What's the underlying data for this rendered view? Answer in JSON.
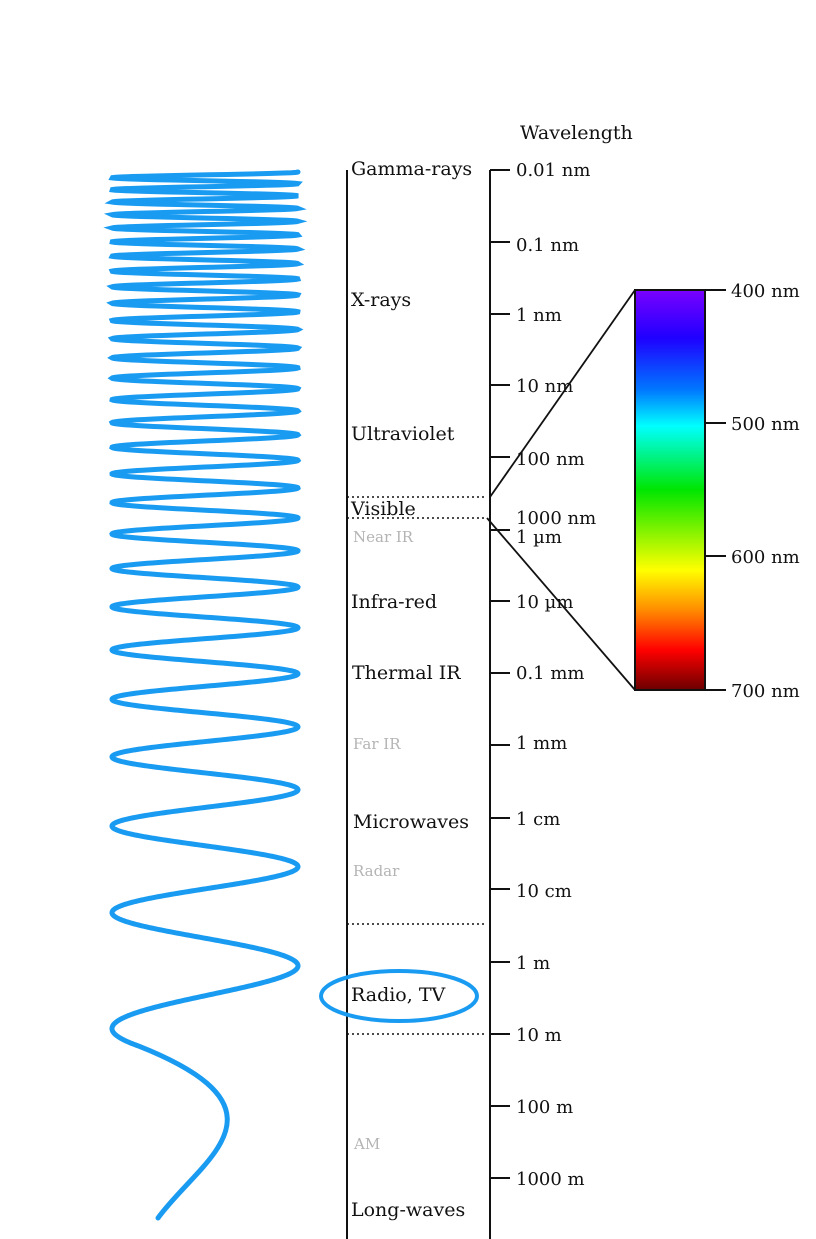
{
  "axis_title": "Wavelength",
  "bands": [
    {
      "label": "Gamma-rays",
      "kind": "main"
    },
    {
      "label": "X-rays",
      "kind": "main"
    },
    {
      "label": "Ultraviolet",
      "kind": "main"
    },
    {
      "label": "Visible",
      "kind": "main"
    },
    {
      "label": "Near IR",
      "kind": "sub"
    },
    {
      "label": "Infra-red",
      "kind": "main"
    },
    {
      "label": "Thermal IR",
      "kind": "main"
    },
    {
      "label": "Far IR",
      "kind": "sub"
    },
    {
      "label": "Microwaves",
      "kind": "main"
    },
    {
      "label": "Radar",
      "kind": "sub"
    },
    {
      "label": "Radio, TV",
      "kind": "main",
      "highlighted": true
    },
    {
      "label": "AM",
      "kind": "sub"
    },
    {
      "label": "Long-waves",
      "kind": "main"
    }
  ],
  "wavelength_ticks": [
    "0.01 nm",
    "0.1 nm",
    "1 nm",
    "10 nm",
    "100 nm",
    "1000 nm",
    "1 µm",
    "10 µm",
    "0.1 mm",
    "1 mm",
    "1 cm",
    "10 cm",
    "1 m",
    "10 m",
    "100 m",
    "1000 m"
  ],
  "visible_spectrum": {
    "ticks": [
      "400 nm",
      "500 nm",
      "600 nm",
      "700 nm"
    ],
    "range_nm": [
      400,
      700
    ],
    "colors": [
      "#7a00ff",
      "#0040ff",
      "#00ffff",
      "#00e600",
      "#ffff00",
      "#ff8000",
      "#ff0000",
      "#6b0000"
    ]
  },
  "colors": {
    "wave": "#1a9bf2",
    "highlight": "#1a9bf2",
    "line": "#111111",
    "sub_label": "#b4b4b4"
  }
}
